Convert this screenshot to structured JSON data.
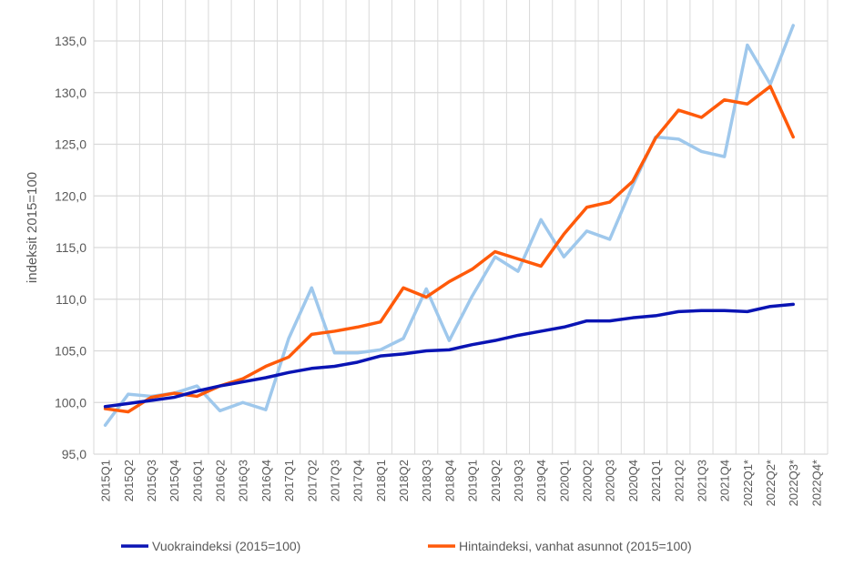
{
  "chart_data": {
    "type": "line",
    "title": "",
    "xlabel": "",
    "ylabel": "indeksit 2015=100",
    "ylim": [
      95,
      139
    ],
    "yticks": [
      95,
      100,
      105,
      110,
      115,
      120,
      125,
      130,
      135
    ],
    "ytick_labels": [
      "95,0",
      "100,0",
      "105,0",
      "110,0",
      "115,0",
      "120,0",
      "125,0",
      "130,0",
      "135,0"
    ],
    "grid": true,
    "legend_position": "bottom",
    "categories": [
      "2015Q1",
      "2015Q2",
      "2015Q3",
      "2015Q4",
      "2016Q1",
      "2016Q2",
      "2016Q3",
      "2016Q4",
      "2017Q1",
      "2017Q2",
      "2017Q3",
      "2017Q4",
      "2018Q1",
      "2018Q2",
      "2018Q3",
      "2018Q4",
      "2019Q1",
      "2019Q2",
      "2019Q3",
      "2019Q4",
      "2020Q1",
      "2020Q2",
      "2020Q3",
      "2020Q4",
      "2021Q1",
      "2021Q2",
      "2021Q3",
      "2021Q4",
      "2022Q1*",
      "2022Q2*",
      "2022Q3*",
      "2022Q4*"
    ],
    "series": [
      {
        "name": "Vuokraindeksi (2015=100)",
        "color": "#0a14b4",
        "legend": true,
        "values": [
          99.6,
          99.9,
          100.2,
          100.5,
          101.1,
          101.6,
          102.0,
          102.4,
          102.9,
          103.3,
          103.5,
          103.9,
          104.5,
          104.7,
          105.0,
          105.1,
          105.6,
          106.0,
          106.5,
          106.9,
          107.3,
          107.9,
          107.9,
          108.2,
          108.4,
          108.8,
          108.9,
          108.9,
          108.8,
          109.3,
          109.5,
          null
        ]
      },
      {
        "name": "Hintaindeksi, vanhat asunnot (2015=100)",
        "color": "#ff5a0a",
        "legend": true,
        "values": [
          99.4,
          99.1,
          100.5,
          100.9,
          100.6,
          101.6,
          102.3,
          103.5,
          104.4,
          106.6,
          106.9,
          107.3,
          107.8,
          111.1,
          110.2,
          111.7,
          112.9,
          114.6,
          113.9,
          113.2,
          116.3,
          118.9,
          119.4,
          121.4,
          125.6,
          128.3,
          127.6,
          129.3,
          128.9,
          130.6,
          125.7,
          null
        ]
      },
      {
        "name": "",
        "color": "#9fc8ec",
        "legend": false,
        "values": [
          97.8,
          100.8,
          100.6,
          100.9,
          101.6,
          99.2,
          100.0,
          99.3,
          106.2,
          111.1,
          104.8,
          104.8,
          105.1,
          106.2,
          111.0,
          106.0,
          110.3,
          114.1,
          112.7,
          117.7,
          114.1,
          116.6,
          115.8,
          121.0,
          125.7,
          125.5,
          124.3,
          123.8,
          134.6,
          130.8,
          136.5,
          null
        ]
      }
    ]
  }
}
